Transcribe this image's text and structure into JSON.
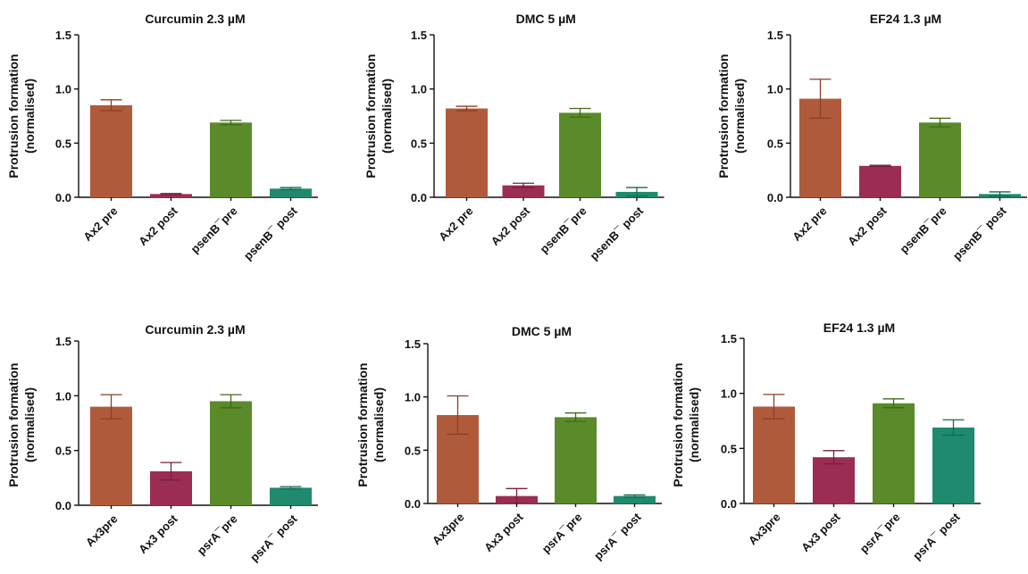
{
  "chart_data": [
    {
      "type": "bar",
      "title": "Curcumin 2.3 µM",
      "ylabel": "Protrusion formation (normalised)",
      "ylabel_lines": [
        "Protrusion formation",
        "(normalised)"
      ],
      "ylim": [
        0,
        1.5
      ],
      "yticks": [
        "0.0",
        "0.5",
        "1.0",
        "1.5"
      ],
      "categories": [
        "Ax2 pre",
        "Ax2 post",
        "psenB¯pre",
        "psenB¯ post"
      ],
      "values": [
        0.85,
        0.03,
        0.69,
        0.08
      ],
      "errors": [
        0.05,
        0.005,
        0.02,
        0.01
      ],
      "colors": [
        "#b05a3c",
        "#9b2d55",
        "#5b8a2a",
        "#1f8a6e"
      ],
      "error_colors": [
        "#8a3f25",
        "#7a1d40",
        "#3f6a18",
        "#136a52"
      ],
      "grid": false
    },
    {
      "type": "bar",
      "title": "DMC 5 µM",
      "ylabel": "Protrusion formation (normalised)",
      "ylabel_lines": [
        "Protrusion formation",
        "(normalised)"
      ],
      "ylim": [
        0,
        1.5
      ],
      "yticks": [
        "0.0",
        "0.5",
        "1.0",
        "1.5"
      ],
      "categories": [
        "Ax2 pre",
        "Ax2 post",
        "psenB¯pre",
        "psenB¯ post"
      ],
      "values": [
        0.82,
        0.11,
        0.78,
        0.05
      ],
      "errors": [
        0.02,
        0.02,
        0.04,
        0.04
      ],
      "colors": [
        "#b05a3c",
        "#9b2d55",
        "#5b8a2a",
        "#1f8a6e"
      ],
      "error_colors": [
        "#8a3f25",
        "#7a1d40",
        "#3f6a18",
        "#136a52"
      ],
      "grid": false
    },
    {
      "type": "bar",
      "title": "EF24 1.3 µM",
      "ylabel": "Protrusion formation (normalised)",
      "ylabel_lines": [
        "Protrusion formation",
        "(normalised)"
      ],
      "ylim": [
        0,
        1.5
      ],
      "yticks": [
        "0.0",
        "0.5",
        "1.0",
        "1.5"
      ],
      "categories": [
        "Ax2 pre",
        "Ax2 post",
        "psenB¯pre",
        "psenB¯ post"
      ],
      "values": [
        0.91,
        0.29,
        0.69,
        0.03
      ],
      "errors": [
        0.18,
        0.005,
        0.04,
        0.02
      ],
      "colors": [
        "#b05a3c",
        "#9b2d55",
        "#5b8a2a",
        "#1f8a6e"
      ],
      "error_colors": [
        "#8a3f25",
        "#7a1d40",
        "#3f6a18",
        "#136a52"
      ],
      "grid": false
    },
    {
      "type": "bar",
      "title": "Curcumin 2.3 µM",
      "ylabel": "Protrusion formation (normalised)",
      "ylabel_lines": [
        "Protrusion formation",
        "(normalised)"
      ],
      "ylim": [
        0,
        1.5
      ],
      "yticks": [
        "0.0",
        "0.5",
        "1.0",
        "1.5"
      ],
      "categories": [
        "Ax3pre",
        "Ax3 post",
        "psrA¯pre",
        "psrA¯ post"
      ],
      "values": [
        0.9,
        0.31,
        0.95,
        0.16
      ],
      "errors": [
        0.11,
        0.08,
        0.06,
        0.01
      ],
      "colors": [
        "#b05a3c",
        "#9b2d55",
        "#5b8a2a",
        "#1f8a6e"
      ],
      "error_colors": [
        "#8a3f25",
        "#7a1d40",
        "#3f6a18",
        "#136a52"
      ],
      "grid": false
    },
    {
      "type": "bar",
      "title": "DMC 5 µM",
      "ylabel": "Protrusion formation (normalised)",
      "ylabel_lines": [
        "Protrusion formation",
        "(normalised)"
      ],
      "ylim": [
        0,
        1.5
      ],
      "yticks": [
        "0.0",
        "0.5",
        "1.0",
        "1.5"
      ],
      "categories": [
        "Ax3pre",
        "Ax3 post",
        "psrA¯pre",
        "psrA¯ post"
      ],
      "values": [
        0.83,
        0.07,
        0.81,
        0.07
      ],
      "errors": [
        0.18,
        0.07,
        0.04,
        0.01
      ],
      "colors": [
        "#b05a3c",
        "#9b2d55",
        "#5b8a2a",
        "#1f8a6e"
      ],
      "error_colors": [
        "#8a3f25",
        "#7a1d40",
        "#3f6a18",
        "#136a52"
      ],
      "grid": false
    },
    {
      "type": "bar",
      "title": "EF24 1.3 µM",
      "ylabel": "Protrusion formation (normalised)",
      "ylabel_lines": [
        "Protrusion formation",
        "(normalised)"
      ],
      "ylim": [
        0,
        1.5
      ],
      "yticks": [
        "0.0",
        "0.5",
        "1.0",
        "1.5"
      ],
      "categories": [
        "Ax3pre",
        "Ax3 post",
        "psrA¯pre",
        "psrA¯ post"
      ],
      "values": [
        0.88,
        0.42,
        0.91,
        0.69
      ],
      "errors": [
        0.11,
        0.06,
        0.04,
        0.07
      ],
      "colors": [
        "#b05a3c",
        "#9b2d55",
        "#5b8a2a",
        "#1f8a6e"
      ],
      "error_colors": [
        "#8a3f25",
        "#7a1d40",
        "#3f6a18",
        "#136a52"
      ],
      "grid": false
    }
  ]
}
